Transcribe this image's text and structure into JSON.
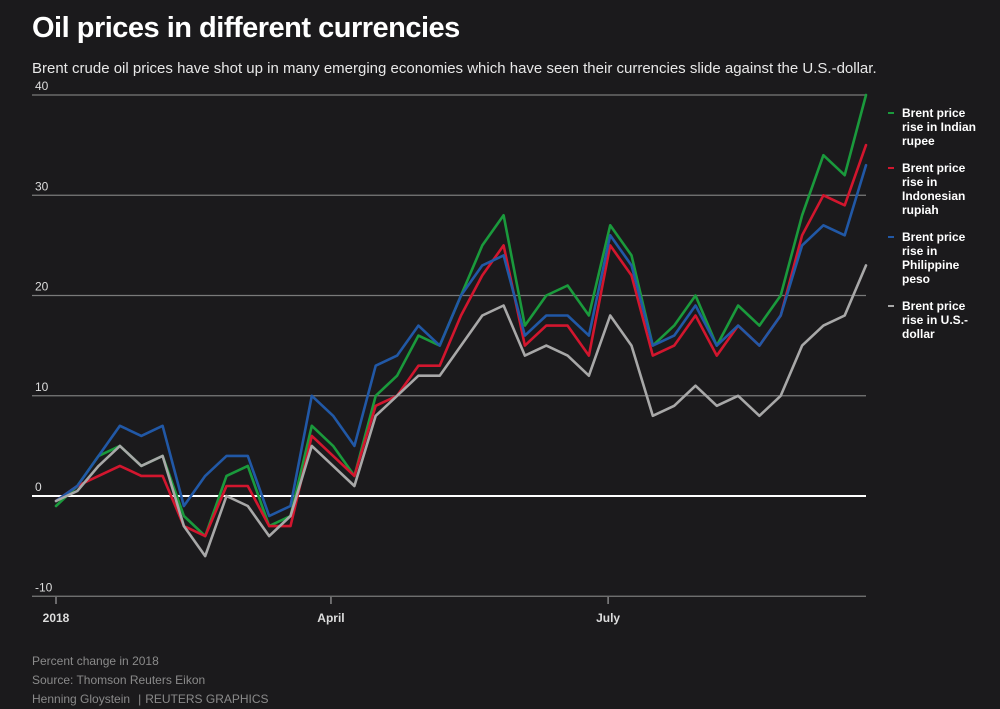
{
  "header": {
    "title": "Oil prices in different currencies",
    "subtitle": "Brent crude oil prices have shot up in many emerging economies which have seen their currencies slide against the U.S.-dollar."
  },
  "footer": {
    "note": "Percent change in 2018",
    "source": "Source: Thomson Reuters Eikon",
    "author": "Henning Gloystein",
    "credit": "REUTERS GRAPHICS"
  },
  "chart_data": {
    "type": "line",
    "title": "Oil prices in different currencies",
    "ylabel": "",
    "xlabel": "",
    "ylim": [
      -10,
      40
    ],
    "yticks": [
      40,
      30,
      20,
      10,
      0,
      -10
    ],
    "xticks": [
      {
        "label": "2018",
        "week": 0
      },
      {
        "label": "April",
        "week": 12.9
      },
      {
        "label": "July",
        "week": 25.9
      }
    ],
    "x_unit": "weeks since 2018",
    "x": [
      0,
      1,
      2,
      3,
      4,
      5,
      6,
      7,
      8,
      9,
      10,
      11,
      12,
      13,
      14,
      15,
      16,
      17,
      18,
      19,
      20,
      21,
      22,
      23,
      24,
      25,
      26,
      27,
      28,
      29,
      30,
      31,
      32,
      33,
      34,
      35,
      36,
      37,
      38
    ],
    "grid": true,
    "legend_position": "right",
    "series": [
      {
        "name": "Brent price rise in Indian rupee",
        "color": "#1a9a3c",
        "values": [
          -1,
          1,
          4,
          5,
          3,
          4,
          -2,
          -4,
          2,
          3,
          -3,
          -2,
          7,
          5,
          2,
          10,
          12,
          16,
          15,
          20,
          25,
          28,
          17,
          20,
          21,
          18,
          27,
          24,
          15,
          17,
          20,
          15,
          19,
          17,
          20,
          28,
          34,
          32,
          40
        ]
      },
      {
        "name": "Brent price rise in Indonesian rupiah",
        "color": "#d2162e",
        "values": [
          -0.5,
          1,
          2,
          3,
          2,
          2,
          -3,
          -4,
          1,
          1,
          -3,
          -3,
          6,
          4,
          2,
          9,
          10,
          13,
          13,
          18,
          22,
          25,
          15,
          17,
          17,
          14,
          25,
          22,
          14,
          15,
          18,
          14,
          17,
          15,
          18,
          26,
          30,
          29,
          35
        ]
      },
      {
        "name": "Brent price rise in Philippine peso",
        "color": "#2158a6",
        "values": [
          -0.5,
          1,
          4,
          7,
          6,
          7,
          -1,
          2,
          4,
          4,
          -2,
          -1,
          10,
          8,
          5,
          13,
          14,
          17,
          15,
          20,
          23,
          24,
          16,
          18,
          18,
          16,
          26,
          23,
          15,
          16,
          19,
          15,
          17,
          15,
          18,
          25,
          27,
          26,
          33
        ]
      },
      {
        "name": "Brent price rise in U.S.-dollar",
        "color": "#a8a8a8",
        "values": [
          -0.5,
          0.5,
          3,
          5,
          3,
          4,
          -3,
          -6,
          0,
          -1,
          -4,
          -2,
          5,
          3,
          1,
          8,
          10,
          12,
          12,
          15,
          18,
          19,
          14,
          15,
          14,
          12,
          18,
          15,
          8,
          9,
          11,
          9,
          10,
          8,
          10,
          15,
          17,
          18,
          23
        ]
      }
    ]
  },
  "legend": [
    {
      "label": "Brent price rise in Indian rupee",
      "color": "#1a9a3c"
    },
    {
      "label": "Brent price rise in Indonesian rupiah",
      "color": "#d2162e"
    },
    {
      "label": "Brent price rise in Philippine peso",
      "color": "#2158a6"
    },
    {
      "label": "Brent price rise in U.S.-dollar",
      "color": "#a8a8a8"
    }
  ]
}
